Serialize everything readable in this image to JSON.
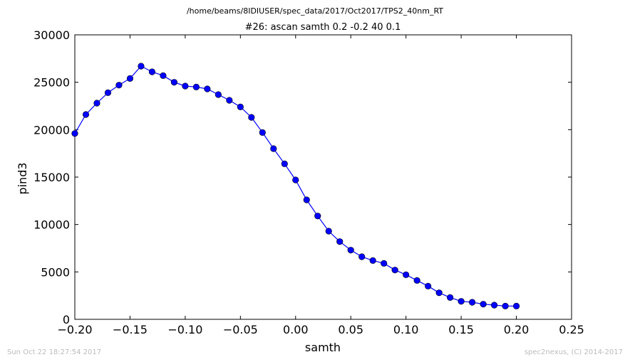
{
  "chart_data": {
    "type": "line",
    "suptitle": "/home/beams/8IDIUSER/spec_data/2017/Oct2017/TPS2_40nm_RT",
    "title": "#26: ascan  samth 0.2 -0.2  40 0.1",
    "xlabel": "samth",
    "ylabel": "pind3",
    "xlim": [
      -0.2,
      0.25
    ],
    "ylim": [
      0,
      30000
    ],
    "xticks": [
      -0.2,
      -0.15,
      -0.1,
      -0.05,
      0.0,
      0.05,
      0.1,
      0.15,
      0.2,
      0.25
    ],
    "xtick_labels": [
      "−0.20",
      "−0.15",
      "−0.10",
      "−0.05",
      "0.00",
      "0.05",
      "0.10",
      "0.15",
      "0.20",
      "0.25"
    ],
    "yticks": [
      0,
      5000,
      10000,
      15000,
      20000,
      25000,
      30000
    ],
    "ytick_labels": [
      "0",
      "5000",
      "10000",
      "15000",
      "20000",
      "25000",
      "30000"
    ],
    "grid": false,
    "color": "#0000ff",
    "x": [
      -0.2,
      -0.19,
      -0.18,
      -0.17,
      -0.16,
      -0.15,
      -0.14,
      -0.13,
      -0.12,
      -0.11,
      -0.1,
      -0.09,
      -0.08,
      -0.07,
      -0.06,
      -0.05,
      -0.04,
      -0.03,
      -0.02,
      -0.01,
      0.0,
      0.01,
      0.02,
      0.03,
      0.04,
      0.05,
      0.06,
      0.07,
      0.08,
      0.09,
      0.1,
      0.11,
      0.12,
      0.13,
      0.14,
      0.15,
      0.16,
      0.17,
      0.18,
      0.19,
      0.2
    ],
    "y": [
      19600,
      21600,
      22800,
      23900,
      24700,
      25400,
      26700,
      26100,
      25700,
      25000,
      24600,
      24500,
      24300,
      23700,
      23100,
      22400,
      21300,
      19700,
      18000,
      16400,
      14700,
      12600,
      10900,
      9300,
      8200,
      7300,
      6600,
      6200,
      5900,
      5200,
      4700,
      4100,
      3500,
      2800,
      2300,
      1900,
      1800,
      1600,
      1500,
      1400,
      1400
    ]
  },
  "footer": {
    "timestamp": "Sun Oct 22 18:27:54 2017",
    "credit": "spec2nexus, (C) 2014-2017"
  }
}
